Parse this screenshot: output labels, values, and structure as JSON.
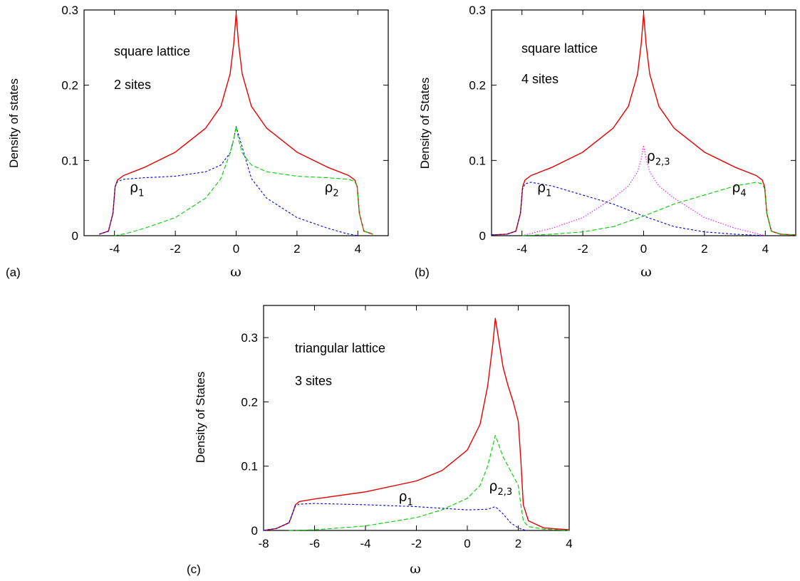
{
  "chart_data": [
    {
      "panel_label": "(a)",
      "type": "line",
      "xlabel": "ω",
      "ylabel": "Density of states",
      "xlim": [
        -5,
        5
      ],
      "ylim": [
        0,
        0.3
      ],
      "xticks": [
        -4,
        -2,
        0,
        2,
        4
      ],
      "yticks": [
        0,
        0.1,
        0.2,
        0.3
      ],
      "ytick_labels": [
        "0",
        "0.1",
        "0.2",
        "0.3"
      ],
      "annotations": [
        "square lattice",
        "2 sites"
      ],
      "curve_labels": [
        {
          "base": "ρ",
          "sub": "1",
          "at": [
            -3.5,
            0.058
          ]
        },
        {
          "base": "ρ",
          "sub": "2",
          "at": [
            2.9,
            0.058
          ]
        }
      ],
      "series": [
        {
          "color": "#e60000",
          "dash": "solid",
          "x": [
            -4.5,
            -4.2,
            -4.05,
            -3.98,
            -3.9,
            -3.7,
            -3.0,
            -2.0,
            -1.0,
            -0.5,
            -0.2,
            -0.08,
            0,
            0.08,
            0.2,
            0.5,
            1.0,
            2.0,
            3.0,
            3.7,
            3.9,
            3.98,
            4.05,
            4.2,
            4.5
          ],
          "y": [
            0.002,
            0.006,
            0.03,
            0.065,
            0.074,
            0.08,
            0.091,
            0.111,
            0.143,
            0.172,
            0.215,
            0.255,
            0.295,
            0.255,
            0.215,
            0.172,
            0.143,
            0.111,
            0.091,
            0.08,
            0.074,
            0.065,
            0.03,
            0.006,
            0.002
          ]
        },
        {
          "color": "#0000dd",
          "dash": "short",
          "x": [
            -4.5,
            -4.2,
            -4.05,
            -3.98,
            -3.9,
            -3.7,
            -3.0,
            -2.0,
            -1.0,
            -0.5,
            -0.2,
            -0.08,
            0,
            0.5,
            1.0,
            2.0,
            3.0,
            3.6,
            4.0
          ],
          "y": [
            0.002,
            0.006,
            0.03,
            0.065,
            0.072,
            0.075,
            0.077,
            0.079,
            0.085,
            0.094,
            0.11,
            0.128,
            0.145,
            0.076,
            0.05,
            0.024,
            0.01,
            0.003,
            0.0
          ]
        },
        {
          "color": "#00cc00",
          "dash": "long",
          "x": [
            -4.0,
            -3.6,
            -3.0,
            -2.0,
            -1.0,
            -0.5,
            -0.2,
            -0.08,
            0,
            0.08,
            0.2,
            0.5,
            1.0,
            2.0,
            3.0,
            3.7,
            3.9,
            3.98,
            4.05,
            4.2,
            4.5
          ],
          "y": [
            0.0,
            0.003,
            0.01,
            0.024,
            0.05,
            0.076,
            0.11,
            0.128,
            0.145,
            0.128,
            0.11,
            0.094,
            0.085,
            0.079,
            0.077,
            0.075,
            0.072,
            0.065,
            0.03,
            0.006,
            0.002
          ]
        }
      ]
    },
    {
      "panel_label": "(b)",
      "type": "line",
      "xlabel": "ω",
      "ylabel": "Density of States",
      "xlim": [
        -5,
        5
      ],
      "ylim": [
        0,
        0.3
      ],
      "xticks": [
        -4,
        -2,
        0,
        2,
        4
      ],
      "yticks": [
        0,
        0.1,
        0.2,
        0.3
      ],
      "ytick_labels": [
        "0",
        "0.1",
        "0.2",
        "0.3"
      ],
      "annotations": [
        "square lattice",
        "4 sites"
      ],
      "curve_labels": [
        {
          "base": "ρ",
          "sub": "1",
          "at": [
            -3.5,
            0.058
          ]
        },
        {
          "base": "ρ",
          "sub": "2,3",
          "at": [
            0.1,
            0.1
          ]
        },
        {
          "base": "ρ",
          "sub": "4",
          "at": [
            2.9,
            0.058
          ]
        }
      ],
      "series": [
        {
          "color": "#e60000",
          "dash": "solid",
          "x": [
            -5.0,
            -4.5,
            -4.2,
            -4.05,
            -3.98,
            -3.9,
            -3.7,
            -3.0,
            -2.0,
            -1.0,
            -0.5,
            -0.2,
            -0.08,
            0,
            0.08,
            0.2,
            0.5,
            1.0,
            2.0,
            3.0,
            3.7,
            3.9,
            3.98,
            4.05,
            4.2,
            4.5,
            5.0
          ],
          "y": [
            0.001,
            0.002,
            0.006,
            0.03,
            0.065,
            0.074,
            0.08,
            0.091,
            0.111,
            0.143,
            0.172,
            0.215,
            0.255,
            0.295,
            0.255,
            0.215,
            0.172,
            0.143,
            0.111,
            0.091,
            0.08,
            0.074,
            0.065,
            0.03,
            0.006,
            0.002,
            0.001
          ]
        },
        {
          "color": "#0000dd",
          "dash": "short",
          "x": [
            -5.0,
            -4.5,
            -4.2,
            -4.05,
            -3.98,
            -3.9,
            -3.7,
            -3.0,
            -2.0,
            -1.0,
            0,
            1.0,
            2.0,
            3.0,
            4.0
          ],
          "y": [
            0.001,
            0.002,
            0.006,
            0.03,
            0.062,
            0.069,
            0.071,
            0.066,
            0.054,
            0.042,
            0.026,
            0.012,
            0.005,
            0.002,
            0.0
          ]
        },
        {
          "color": "#ee00ee",
          "dash": "dot",
          "x": [
            -4.0,
            -3.0,
            -2.0,
            -1.0,
            -0.5,
            -0.2,
            -0.08,
            0,
            0.08,
            0.2,
            0.5,
            1.0,
            2.0,
            3.0,
            4.0
          ],
          "y": [
            0.0,
            0.01,
            0.024,
            0.05,
            0.066,
            0.085,
            0.102,
            0.12,
            0.102,
            0.085,
            0.066,
            0.05,
            0.024,
            0.01,
            0.0
          ]
        },
        {
          "color": "#00cc00",
          "dash": "long",
          "x": [
            -4.0,
            -3.0,
            -2.0,
            -1.0,
            0,
            1.0,
            2.0,
            3.0,
            3.7,
            3.9,
            3.98,
            4.05,
            4.2,
            4.5,
            5.0
          ],
          "y": [
            0.0,
            0.002,
            0.005,
            0.012,
            0.026,
            0.042,
            0.054,
            0.066,
            0.071,
            0.069,
            0.062,
            0.03,
            0.006,
            0.002,
            0.001
          ]
        }
      ]
    },
    {
      "panel_label": "(c)",
      "type": "line",
      "xlabel": "ω",
      "ylabel": "Density of States",
      "xlim": [
        -8,
        4
      ],
      "ylim": [
        0,
        0.35
      ],
      "xticks": [
        -8,
        -6,
        -4,
        -2,
        0,
        2,
        4
      ],
      "yticks": [
        0,
        0.1,
        0.2,
        0.3
      ],
      "ytick_labels": [
        "0",
        "0.1",
        "0.2",
        "0.3"
      ],
      "annotations": [
        "triangular lattice",
        "3 sites"
      ],
      "curve_labels": [
        {
          "base": "ρ",
          "sub": "1",
          "at": [
            -2.7,
            0.046
          ]
        },
        {
          "base": "ρ",
          "sub": "2,3",
          "at": [
            0.85,
            0.062
          ]
        }
      ],
      "series": [
        {
          "color": "#e60000",
          "dash": "solid",
          "x": [
            -8.0,
            -7.5,
            -7.0,
            -6.85,
            -6.75,
            -6.6,
            -6.0,
            -4.0,
            -2.0,
            -1.0,
            0,
            0.5,
            0.8,
            1.0,
            1.1,
            1.2,
            1.4,
            1.6,
            1.8,
            2.0,
            2.1,
            2.2,
            2.4,
            3.0,
            4.0
          ],
          "y": [
            0.0,
            0.003,
            0.012,
            0.028,
            0.04,
            0.045,
            0.049,
            0.06,
            0.077,
            0.093,
            0.125,
            0.165,
            0.225,
            0.29,
            0.33,
            0.305,
            0.255,
            0.225,
            0.2,
            0.17,
            0.11,
            0.04,
            0.015,
            0.004,
            0.001
          ]
        },
        {
          "color": "#0000dd",
          "dash": "short",
          "x": [
            -8.0,
            -7.5,
            -7.0,
            -6.85,
            -6.75,
            -6.6,
            -6.0,
            -4.0,
            -2.0,
            0,
            0.8,
            1.1,
            1.4,
            1.7,
            2.0,
            2.3
          ],
          "y": [
            0.0,
            0.003,
            0.012,
            0.028,
            0.038,
            0.041,
            0.042,
            0.04,
            0.037,
            0.032,
            0.033,
            0.037,
            0.026,
            0.012,
            0.004,
            0.0
          ]
        },
        {
          "color": "#00cc00",
          "dash": "long",
          "x": [
            -7.0,
            -6.0,
            -4.0,
            -2.0,
            -1.0,
            0,
            0.5,
            0.8,
            1.0,
            1.1,
            1.2,
            1.4,
            1.6,
            1.8,
            2.0,
            2.1,
            2.2,
            2.4,
            3.0,
            4.0
          ],
          "y": [
            0.0,
            0.001,
            0.007,
            0.02,
            0.032,
            0.05,
            0.07,
            0.1,
            0.132,
            0.148,
            0.137,
            0.115,
            0.1,
            0.085,
            0.07,
            0.04,
            0.015,
            0.006,
            0.002,
            0.0
          ]
        }
      ]
    }
  ]
}
